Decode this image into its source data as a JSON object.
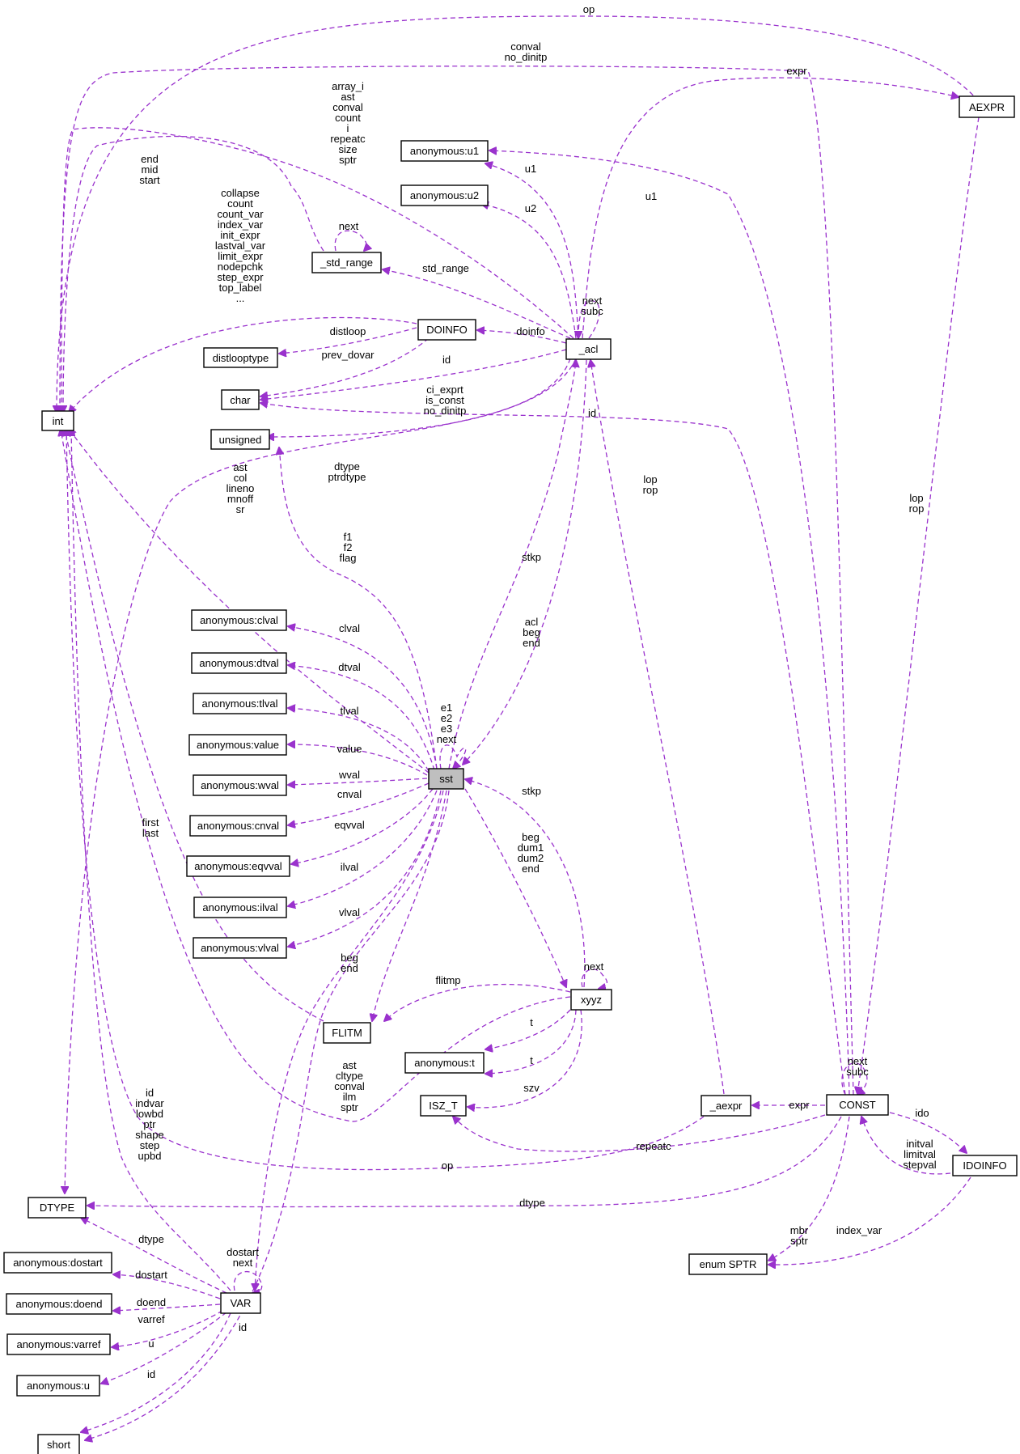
{
  "nodes": {
    "int": "int",
    "dtype": "DTYPE",
    "short": "short",
    "char": "char",
    "unsigned": "unsigned",
    "distlooptype": "distlooptype",
    "doinfo": "DOINFO",
    "std_range": "_std_range",
    "u1": "anonymous:u1",
    "u2": "anonymous:u2",
    "acl": "_acl",
    "aexpr_cap": "AEXPR",
    "sst": "sst",
    "clval": "anonymous:clval",
    "dtval": "anonymous:dtval",
    "tlval": "anonymous:tlval",
    "value": "anonymous:value",
    "wval": "anonymous:wval",
    "cnval": "anonymous:cnval",
    "eqvval": "anonymous:eqvval",
    "ilval": "anonymous:ilval",
    "vlval": "anonymous:vlval",
    "flitm": "FLITM",
    "xyyz": "xyyz",
    "t": "anonymous:t",
    "isz": "ISZ_T",
    "aexpr_low": "_aexpr",
    "const": "CONST",
    "idoinfo": "IDOINFO",
    "esptr": "enum SPTR",
    "var": "VAR",
    "dostart": "anonymous:dostart",
    "doend": "anonymous:doend",
    "varref": "anonymous:varref",
    "u": "anonymous:u"
  },
  "labels": {
    "op_top": [
      "op"
    ],
    "conval_top": [
      "conval",
      "no_dinitp"
    ],
    "expr_top": [
      "expr"
    ],
    "array_i": [
      "array_i",
      "ast",
      "conval",
      "count",
      "i",
      "repeatc",
      "size",
      "sptr"
    ],
    "end_mid": [
      "end",
      "mid",
      "start"
    ],
    "u1_acl": [
      "u1"
    ],
    "u1_const": [
      "u1"
    ],
    "collapse": [
      "collapse",
      "count",
      "count_var",
      "index_var",
      "init_expr",
      "lastval_var",
      "limit_expr",
      "nodepchk",
      "step_expr",
      "top_label",
      "..."
    ],
    "u2_acl": [
      "u2"
    ],
    "next_std": [
      "next"
    ],
    "std_range_lbl": [
      "std_range"
    ],
    "next_subc_acl": [
      "next",
      "subc"
    ],
    "distloop": [
      "distloop"
    ],
    "doinfo_lbl": [
      "doinfo"
    ],
    "prev_dovar": [
      "prev_dovar"
    ],
    "id_acl": [
      "id"
    ],
    "ci_exprt": [
      "ci_exprt",
      "is_const",
      "no_dinitp"
    ],
    "id_const": [
      "id"
    ],
    "lop_rop_aexpr": [
      "lop",
      "rop"
    ],
    "lop_rop_acl": [
      "lop",
      "rop"
    ],
    "dtype_acl": [
      "dtype",
      "ptrdtype"
    ],
    "ast_col": [
      "ast",
      "col",
      "lineno",
      "mnoff",
      "sr"
    ],
    "f1_f2": [
      "f1",
      "f2",
      "flag"
    ],
    "stkp_acl": [
      "stkp"
    ],
    "acl_beg": [
      "acl",
      "beg",
      "end"
    ],
    "clval_lbl": [
      "clval"
    ],
    "dtval_lbl": [
      "dtval"
    ],
    "tlval_lbl": [
      "tlval"
    ],
    "e1_e2": [
      "e1",
      "e2",
      "e3",
      "next"
    ],
    "value_lbl": [
      "value"
    ],
    "wval_lbl": [
      "wval"
    ],
    "cnval_lbl": [
      "cnval"
    ],
    "stkp_xyyz": [
      "stkp"
    ],
    "first_last": [
      "first",
      "last"
    ],
    "eqvval_lbl": [
      "eqvval"
    ],
    "beg_dum": [
      "beg",
      "dum1",
      "dum2",
      "end"
    ],
    "ilval_lbl": [
      "ilval"
    ],
    "vlval_lbl": [
      "vlval"
    ],
    "beg_end_var": [
      "beg",
      "end"
    ],
    "next_xyyz": [
      "next"
    ],
    "flitmp": [
      "flitmp"
    ],
    "t1": [
      "t"
    ],
    "t2": [
      "t"
    ],
    "next_subc_const": [
      "next",
      "subc"
    ],
    "ast_cltype": [
      "ast",
      "cltype",
      "conval",
      "ilm",
      "sptr"
    ],
    "szv": [
      "szv"
    ],
    "expr_low": [
      "expr"
    ],
    "ido": [
      "ido"
    ],
    "id_var": [
      "id",
      "indvar",
      "lowbd",
      "ptr",
      "shape",
      "step",
      "upbd"
    ],
    "repeatc": [
      "repeatc"
    ],
    "initval": [
      "initval",
      "limitval",
      "stepval"
    ],
    "op_low": [
      "op"
    ],
    "dtype_const": [
      "dtype"
    ],
    "mbr_sptr": [
      "mbr",
      "sptr"
    ],
    "index_var": [
      "index_var"
    ],
    "dtype_var": [
      "dtype"
    ],
    "dostart_next": [
      "dostart",
      "next"
    ],
    "dostart_lbl": [
      "dostart"
    ],
    "doend_lbl": [
      "doend"
    ],
    "varref_lbl": [
      "varref"
    ],
    "u_lbl": [
      "u"
    ],
    "id_var_short": [
      "id"
    ],
    "id_short": [
      "id"
    ]
  },
  "colors": {
    "edge": "#9a32cd",
    "node_border": "#000000",
    "highlight_fill": "#bfbfbf"
  }
}
